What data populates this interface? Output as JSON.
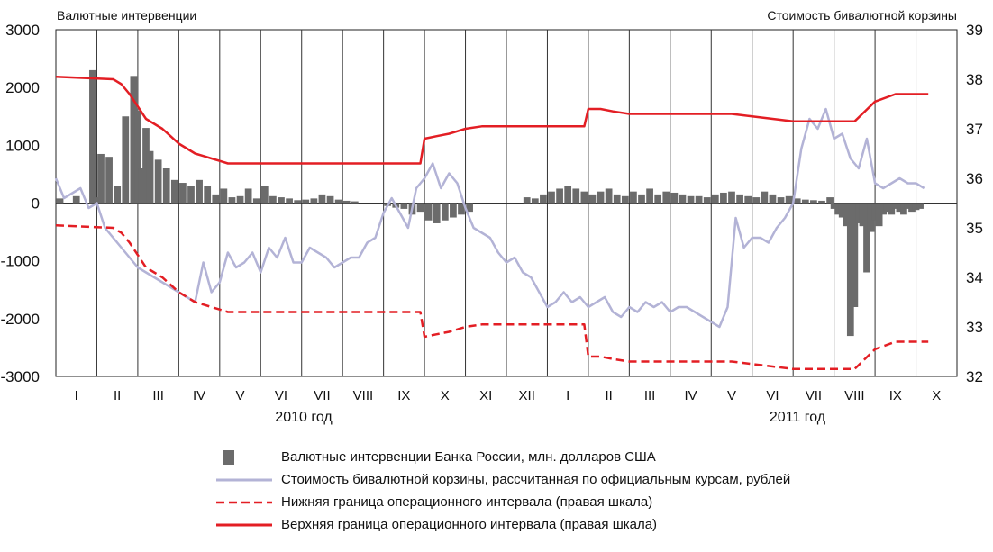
{
  "chart_data": {
    "type": "bar+line",
    "left_axis_title": "Валютные интервенции",
    "right_axis_title": "Стоимость бивалютной корзины",
    "left_ylim": [
      -3000,
      3000
    ],
    "left_ticks": [
      "3000",
      "2000",
      "1000",
      "0",
      "-1000",
      "-2000",
      "-3000"
    ],
    "right_ylim": [
      32,
      39
    ],
    "right_ticks": [
      "39",
      "38",
      "37",
      "36",
      "35",
      "34",
      "33",
      "32"
    ],
    "months": [
      "I",
      "II",
      "III",
      "IV",
      "V",
      "VI",
      "VII",
      "VIII",
      "IX",
      "X",
      "XI",
      "XII",
      "I",
      "II",
      "III",
      "IV",
      "V",
      "VI",
      "VII",
      "VIII",
      "IX",
      "X"
    ],
    "years": [
      "2010 год",
      "2011 год"
    ],
    "grid": "vertical month separators",
    "series": [
      {
        "name": "Валютные интервенции Банка России, млн. долларов США",
        "type": "bar",
        "axis": "left",
        "color": "#6b6b6b",
        "x": [
          0.1,
          0.5,
          0.9,
          1.0,
          1.1,
          1.3,
          1.5,
          1.7,
          1.9,
          2.0,
          2.1,
          2.2,
          2.3,
          2.5,
          2.7,
          2.9,
          3.1,
          3.3,
          3.5,
          3.7,
          3.9,
          4.1,
          4.3,
          4.5,
          4.7,
          4.9,
          5.1,
          5.3,
          5.5,
          5.7,
          5.9,
          6.1,
          6.3,
          6.5,
          6.7,
          6.9,
          7.1,
          7.3,
          7.5,
          7.7,
          7.9,
          8.1,
          8.3,
          8.5,
          8.7,
          8.9,
          9.1,
          9.3,
          9.5,
          9.7,
          9.9,
          10.1,
          10.3,
          10.5,
          10.7,
          10.9,
          11.1,
          11.3,
          11.5,
          11.7,
          11.9,
          12.1,
          12.3,
          12.5,
          12.7,
          12.9,
          13.1,
          13.3,
          13.5,
          13.7,
          13.9,
          14.1,
          14.3,
          14.5,
          14.7,
          14.9,
          15.1,
          15.3,
          15.5,
          15.7,
          15.9,
          16.1,
          16.3,
          16.5,
          16.7,
          16.9,
          17.1,
          17.3,
          17.5,
          17.7,
          17.9,
          18.1,
          18.3,
          18.5,
          18.7,
          18.9,
          19.0,
          19.1,
          19.2,
          19.3,
          19.4,
          19.5,
          19.6,
          19.7,
          19.8,
          19.9,
          20.0,
          20.1,
          20.2,
          20.3,
          20.4,
          20.5,
          20.6,
          20.7,
          20.8,
          20.9,
          21.0,
          21.1
        ],
        "values": [
          80,
          120,
          2300,
          100,
          850,
          800,
          300,
          1500,
          2200,
          1600,
          600,
          1300,
          900,
          750,
          600,
          400,
          350,
          300,
          400,
          300,
          150,
          250,
          100,
          120,
          250,
          80,
          300,
          120,
          100,
          80,
          50,
          60,
          80,
          150,
          120,
          60,
          40,
          30,
          0,
          0,
          0,
          -50,
          -80,
          -100,
          -200,
          -150,
          -300,
          -350,
          -300,
          -250,
          -200,
          -150,
          0,
          0,
          0,
          0,
          0,
          0,
          100,
          80,
          150,
          200,
          250,
          300,
          250,
          200,
          150,
          200,
          250,
          150,
          120,
          200,
          150,
          250,
          150,
          200,
          180,
          150,
          120,
          120,
          100,
          150,
          180,
          200,
          150,
          120,
          100,
          200,
          150,
          100,
          120,
          80,
          60,
          50,
          40,
          100,
          -100,
          -200,
          -250,
          -400,
          -2300,
          -1800,
          -350,
          -400,
          -1200,
          -500,
          -300,
          -400,
          -200,
          -150,
          -200,
          -100,
          -150,
          -200,
          -100,
          -150,
          -120,
          -100
        ]
      },
      {
        "name": "Стоимость бивалютной корзины, рассчитанная по официальным курсам, рублей",
        "type": "line",
        "axis": "right",
        "color": "#b3b3d6",
        "x": [
          0.0,
          0.2,
          0.4,
          0.6,
          0.8,
          1.0,
          1.2,
          1.4,
          1.6,
          1.8,
          2.0,
          2.2,
          2.4,
          2.6,
          2.8,
          3.0,
          3.2,
          3.4,
          3.6,
          3.8,
          4.0,
          4.2,
          4.4,
          4.6,
          4.8,
          5.0,
          5.2,
          5.4,
          5.6,
          5.8,
          6.0,
          6.2,
          6.4,
          6.6,
          6.8,
          7.0,
          7.2,
          7.4,
          7.6,
          7.8,
          8.0,
          8.2,
          8.4,
          8.6,
          8.8,
          9.0,
          9.2,
          9.4,
          9.6,
          9.8,
          10.0,
          10.2,
          10.4,
          10.6,
          10.8,
          11.0,
          11.2,
          11.4,
          11.6,
          11.8,
          12.0,
          12.2,
          12.4,
          12.6,
          12.8,
          13.0,
          13.2,
          13.4,
          13.6,
          13.8,
          14.0,
          14.2,
          14.4,
          14.6,
          14.8,
          15.0,
          15.2,
          15.4,
          15.6,
          15.8,
          16.0,
          16.2,
          16.4,
          16.6,
          16.8,
          17.0,
          17.2,
          17.4,
          17.6,
          17.8,
          18.0,
          18.2,
          18.4,
          18.6,
          18.8,
          19.0,
          19.2,
          19.4,
          19.6,
          19.8,
          20.0,
          20.2,
          20.4,
          20.6,
          20.8,
          21.0,
          21.2
        ],
        "values": [
          36.0,
          35.6,
          35.7,
          35.8,
          35.4,
          35.5,
          35.0,
          34.8,
          34.6,
          34.4,
          34.2,
          34.1,
          34.0,
          33.9,
          33.8,
          33.7,
          33.6,
          33.5,
          34.3,
          33.7,
          33.9,
          34.5,
          34.2,
          34.3,
          34.5,
          34.1,
          34.6,
          34.4,
          34.8,
          34.3,
          34.3,
          34.6,
          34.5,
          34.4,
          34.2,
          34.3,
          34.4,
          34.4,
          34.7,
          34.8,
          35.3,
          35.6,
          35.3,
          35.0,
          35.8,
          36.0,
          36.3,
          35.8,
          36.1,
          35.9,
          35.4,
          35.0,
          34.9,
          34.8,
          34.5,
          34.3,
          34.4,
          34.1,
          34.0,
          33.7,
          33.4,
          33.5,
          33.7,
          33.5,
          33.6,
          33.4,
          33.5,
          33.6,
          33.3,
          33.2,
          33.4,
          33.3,
          33.5,
          33.4,
          33.5,
          33.3,
          33.4,
          33.4,
          33.3,
          33.2,
          33.1,
          33.0,
          33.4,
          35.2,
          34.6,
          34.8,
          34.8,
          34.7,
          35.0,
          35.2,
          35.5,
          36.6,
          37.2,
          37.0,
          37.4,
          36.8,
          36.9,
          36.4,
          36.2,
          36.8,
          35.9,
          35.8,
          35.9,
          36.0,
          35.9,
          35.9,
          35.8
        ]
      },
      {
        "name": "Нижняя граница операционного интервала (правая шкала)",
        "type": "line-dashed",
        "axis": "right",
        "color": "#e31e24",
        "x": [
          0.0,
          1.4,
          1.6,
          1.8,
          2.0,
          2.2,
          2.4,
          2.6,
          2.8,
          3.0,
          3.2,
          3.4,
          3.6,
          3.8,
          4.0,
          4.2,
          4.4,
          8.9,
          9.0,
          9.3,
          9.6,
          10.0,
          10.4,
          12.9,
          13.0,
          13.3,
          13.6,
          14.0,
          16.5,
          17.0,
          17.5,
          18.0,
          19.5,
          20.0,
          20.5,
          21.0,
          21.3
        ],
        "values": [
          35.05,
          35.0,
          34.9,
          34.7,
          34.45,
          34.2,
          34.1,
          34.0,
          33.85,
          33.7,
          33.6,
          33.5,
          33.45,
          33.4,
          33.35,
          33.3,
          33.3,
          33.3,
          32.8,
          32.85,
          32.9,
          33.0,
          33.05,
          33.05,
          32.4,
          32.4,
          32.35,
          32.3,
          32.3,
          32.25,
          32.2,
          32.15,
          32.15,
          32.55,
          32.7,
          32.7,
          32.7
        ]
      },
      {
        "name": "Верхняя граница операционного интервала (правая шкала)",
        "type": "line",
        "axis": "right",
        "color": "#e31e24",
        "x": [
          0.0,
          1.4,
          1.6,
          1.8,
          2.0,
          2.2,
          2.4,
          2.6,
          2.8,
          3.0,
          3.2,
          3.4,
          3.6,
          3.8,
          4.0,
          4.2,
          4.4,
          8.9,
          9.0,
          9.3,
          9.6,
          10.0,
          10.4,
          12.9,
          13.0,
          13.3,
          13.6,
          14.0,
          16.5,
          17.0,
          17.5,
          18.0,
          19.5,
          20.0,
          20.5,
          21.0,
          21.3
        ],
        "values": [
          38.05,
          38.0,
          37.9,
          37.7,
          37.45,
          37.2,
          37.1,
          37.0,
          36.85,
          36.7,
          36.6,
          36.5,
          36.45,
          36.4,
          36.35,
          36.3,
          36.3,
          36.3,
          36.8,
          36.85,
          36.9,
          37.0,
          37.05,
          37.05,
          37.4,
          37.4,
          37.35,
          37.3,
          37.3,
          37.25,
          37.2,
          37.15,
          37.15,
          37.55,
          37.7,
          37.7,
          37.7
        ]
      }
    ]
  },
  "legend": [
    {
      "label": "Валютные интервенции Банка России, млн. долларов США",
      "icon": "bar"
    },
    {
      "label": "Стоимость бивалютной корзины, рассчитанная по официальным курсам, рублей",
      "icon": "line",
      "color": "#b3b3d6"
    },
    {
      "label": "Нижняя граница операционного интервала (правая шкала)",
      "icon": "dashed",
      "color": "#e31e24"
    },
    {
      "label": "Верхняя граница операционного интервала (правая шкала)",
      "icon": "line",
      "color": "#e31e24"
    }
  ]
}
